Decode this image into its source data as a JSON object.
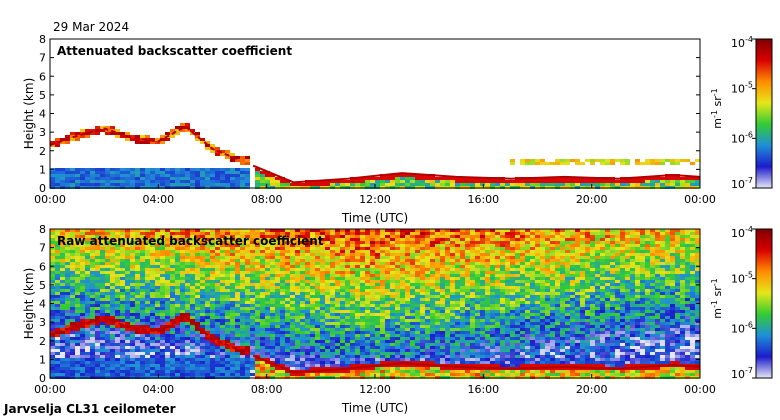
{
  "date_label": "29 Mar 2024",
  "footer_label": "Jarvselja CL31 ceilometer",
  "colors": {
    "panel_bg": "#ffffff",
    "axis": "#000000",
    "colormap": [
      "#e6e6f7",
      "#1c1ccc",
      "#1f8fd8",
      "#33cc33",
      "#e6e61a",
      "#ff8c00",
      "#d80000",
      "#800000"
    ]
  },
  "chart_data": [
    {
      "type": "heatmap",
      "title": "Attenuated backscatter coefficient",
      "xlabel": "Time (UTC)",
      "ylabel": "Height (km)",
      "x_ticks": [
        "00:00",
        "04:00",
        "08:00",
        "12:00",
        "16:00",
        "20:00",
        "00:00"
      ],
      "x_range_hours": [
        0,
        24
      ],
      "ylim": [
        0,
        8
      ],
      "y_ticks": [
        "0",
        "1",
        "2",
        "3",
        "4",
        "5",
        "6",
        "7",
        "8"
      ],
      "colorbar": {
        "scale": "log",
        "range": [
          1e-07,
          0.0001
        ],
        "tick_base": "10",
        "tick_exponents": [
          "-7",
          "-6",
          "-5",
          "-4"
        ],
        "unit_parts": [
          "m",
          "-1",
          " sr",
          "-1"
        ]
      },
      "layers": [
        {
          "name": "cloud layer",
          "x_hours": [
            0,
            1,
            2,
            3,
            4,
            5,
            6,
            7
          ],
          "y_km": [
            2.3,
            2.8,
            3.2,
            2.7,
            2.5,
            3.3,
            2.1,
            1.5
          ]
        },
        {
          "name": "boundary layer top",
          "x_hours": [
            7.5,
            9,
            11,
            13,
            15,
            17,
            19,
            21,
            23,
            24
          ],
          "y_km": [
            1.2,
            0.3,
            0.5,
            0.8,
            0.6,
            0.5,
            0.6,
            0.5,
            0.7,
            0.6
          ]
        }
      ]
    },
    {
      "type": "heatmap",
      "title": "Raw attenuated backscatter coefficient",
      "xlabel": "Time (UTC)",
      "ylabel": "Height (km)",
      "x_ticks": [
        "00:00",
        "04:00",
        "08:00",
        "12:00",
        "16:00",
        "20:00",
        "00:00"
      ],
      "x_range_hours": [
        0,
        24
      ],
      "ylim": [
        0,
        8
      ],
      "y_ticks": [
        "0",
        "1",
        "2",
        "3",
        "4",
        "5",
        "6",
        "7",
        "8"
      ],
      "colorbar": {
        "scale": "log",
        "range": [
          1e-07,
          0.0001
        ],
        "tick_base": "10",
        "tick_exponents": [
          "-7",
          "-6",
          "-5",
          "-4"
        ],
        "unit_parts": [
          "m",
          "-1",
          " sr",
          "-1"
        ]
      },
      "layers": [
        {
          "name": "cloud layer",
          "x_hours": [
            0,
            1,
            2,
            3,
            4,
            5,
            6,
            7
          ],
          "y_km": [
            2.3,
            2.8,
            3.2,
            2.7,
            2.5,
            3.3,
            2.1,
            1.5
          ]
        },
        {
          "name": "boundary layer top",
          "x_hours": [
            7.5,
            9,
            11,
            13,
            15,
            17,
            19,
            21,
            23,
            24
          ],
          "y_km": [
            1.2,
            0.3,
            0.5,
            0.8,
            0.6,
            0.5,
            0.6,
            0.5,
            0.7,
            0.6
          ]
        }
      ]
    }
  ]
}
